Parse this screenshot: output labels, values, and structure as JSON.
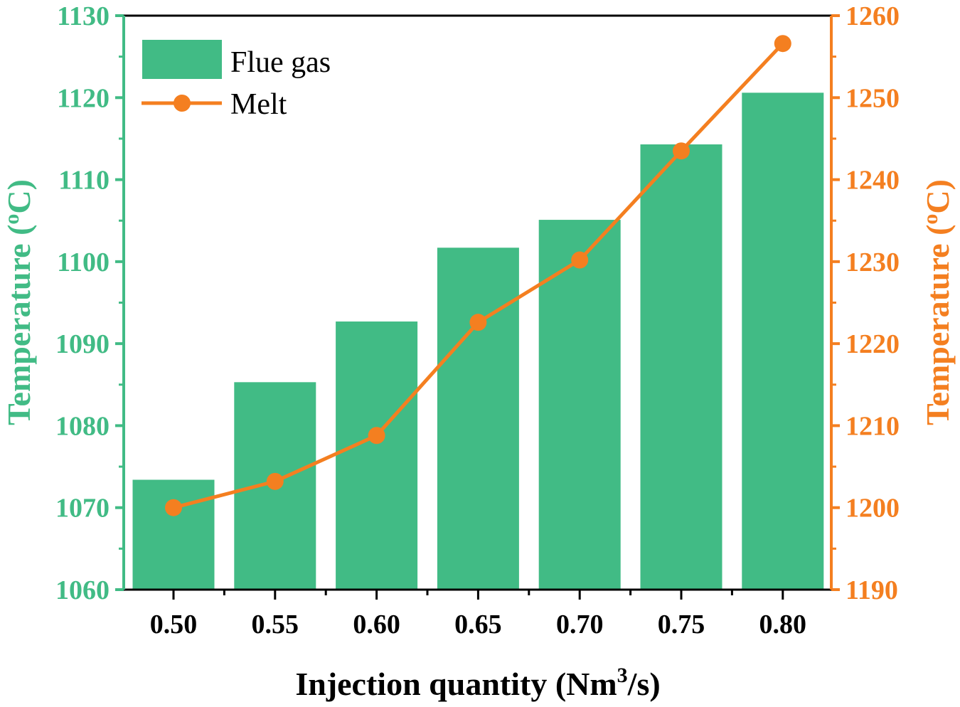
{
  "chart_data": {
    "type": "bar+line",
    "x_categories": [
      "0.50",
      "0.55",
      "0.60",
      "0.65",
      "0.70",
      "0.75",
      "0.80"
    ],
    "series": [
      {
        "name": "Flue gas",
        "type": "bar",
        "axis": "left",
        "color": "#41BB85",
        "values": [
          1073.4,
          1085.3,
          1092.7,
          1101.7,
          1105.1,
          1114.3,
          1120.6
        ]
      },
      {
        "name": "Melt",
        "type": "line",
        "axis": "right",
        "color": "#F47F20",
        "values": [
          1200.0,
          1203.2,
          1208.8,
          1222.6,
          1230.2,
          1243.5,
          1256.6
        ]
      }
    ],
    "xlabel": {
      "text": "Injection quantity (Nm",
      "superscript": "3",
      "suffix": "/s)"
    },
    "ylabel_left": "Temperature (",
    "ylabel_left_sup": "o",
    "ylabel_left_suffix": "C)",
    "ylabel_right": "Temperature (",
    "ylabel_right_sup": "o",
    "ylabel_right_suffix": "C)",
    "ylim_left": [
      1060,
      1130
    ],
    "yticks_left": [
      "1060",
      "1070",
      "1080",
      "1090",
      "1100",
      "1110",
      "1120",
      "1130"
    ],
    "ylim_right": [
      1190,
      1260
    ],
    "yticks_right": [
      "1190",
      "1200",
      "1210",
      "1220",
      "1230",
      "1240",
      "1250",
      "1260"
    ],
    "legend": [
      "Flue gas",
      "Melt"
    ],
    "legend_position": "top-left",
    "left_axis_color": "#41BB85",
    "right_axis_color": "#F47F20"
  }
}
